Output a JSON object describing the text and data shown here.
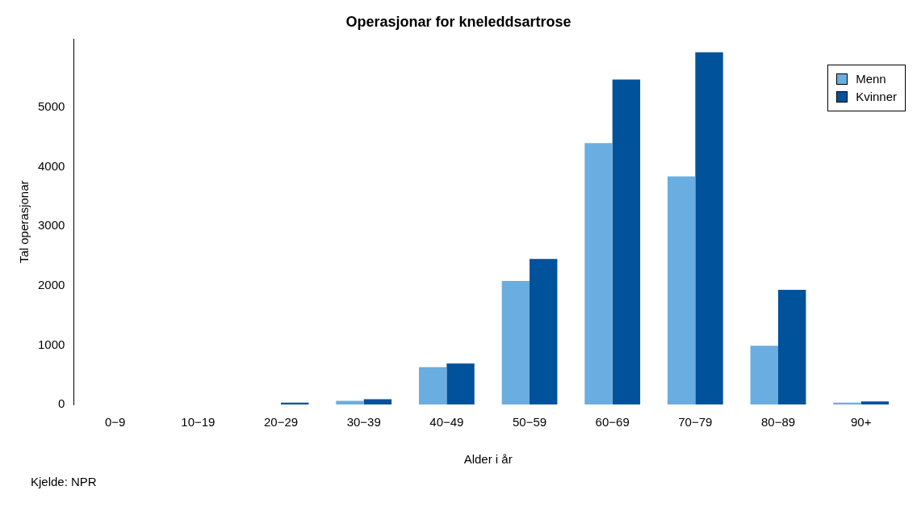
{
  "chart_data": {
    "type": "bar",
    "title": "Operasjonar for kneleddsartrose",
    "xlabel": "Alder i år",
    "ylabel": "Tal operasjonar",
    "annotations": [
      "Kjelde: NPR"
    ],
    "categories": [
      "0−9",
      "10−19",
      "20−29",
      "30−39",
      "40−49",
      "50−59",
      "60−69",
      "70−79",
      "80−89",
      "90+"
    ],
    "series": [
      {
        "name": "Menn",
        "color": "#6aade0",
        "values": [
          0,
          0,
          0,
          60,
          630,
          2080,
          4400,
          3840,
          990,
          30
        ]
      },
      {
        "name": "Kvinner",
        "color": "#00529b",
        "values": [
          0,
          0,
          30,
          90,
          690,
          2450,
          5470,
          5930,
          1930,
          50
        ]
      }
    ],
    "ylim": [
      0,
      6150
    ],
    "yticks": [
      0,
      1000,
      2000,
      3000,
      4000,
      5000
    ],
    "grid": false,
    "legend": "top right"
  }
}
